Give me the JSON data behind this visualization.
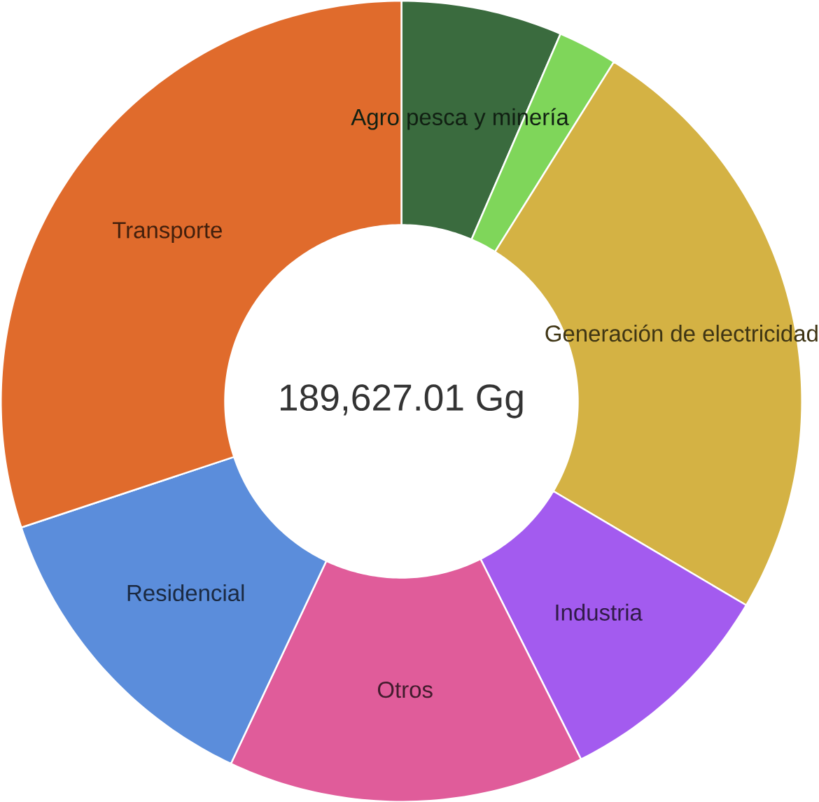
{
  "chart_data": {
    "type": "donut",
    "categories": [
      "Agro pesca y minería",
      null,
      "Generación de electricidad",
      "Industria",
      "Otros",
      "Residencial",
      "Transporte"
    ],
    "values": [
      6.5,
      2.4,
      24.6,
      9.1,
      14.4,
      12.9,
      30.1
    ],
    "colors": [
      "#3a6b3e",
      "#7fd65a",
      "#d4b244",
      "#a35bef",
      "#e05c9a",
      "#5b8ddb",
      "#e06b2c"
    ],
    "annotations": [
      "189,627.01 Gg"
    ]
  }
}
